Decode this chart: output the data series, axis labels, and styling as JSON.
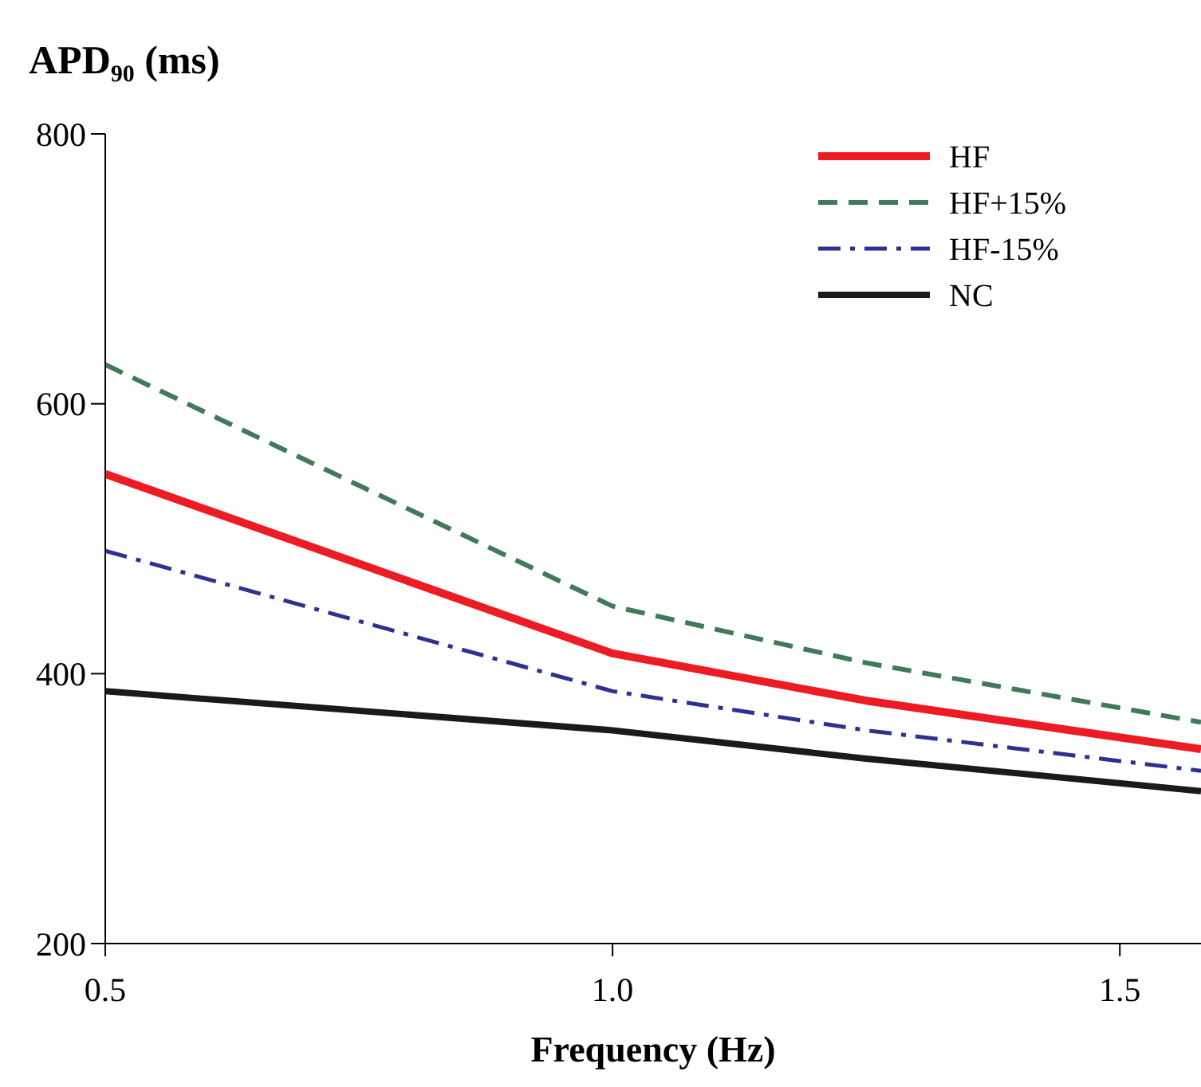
{
  "chart_data": {
    "type": "line",
    "ylabel": "APD₉₀ (ms)",
    "xlabel": "Frequency (Hz)",
    "x": [
      0.5,
      1.0,
      1.25,
      1.58
    ],
    "xlim": [
      0.5,
      1.58
    ],
    "xticks": [
      {
        "value": 0.5,
        "label": "0.5"
      },
      {
        "value": 1.0,
        "label": "1.0"
      },
      {
        "value": 1.5,
        "label": "1.5"
      }
    ],
    "ylim": [
      200,
      800
    ],
    "yticks": [
      200,
      400,
      600,
      800
    ],
    "grid": false,
    "legend": "top right",
    "series": [
      {
        "name": "HF",
        "color": "#ed1c24",
        "values": [
          548,
          415,
          380,
          344
        ],
        "line_style": "solid"
      },
      {
        "name": "HF+15%",
        "color": "#3f7a5a",
        "values": [
          629,
          450,
          408,
          364
        ],
        "line_style": "dashed"
      },
      {
        "name": "HF-15%",
        "color": "#2e3192",
        "values": [
          491,
          387,
          358,
          328
        ],
        "line_style": "dashdot"
      },
      {
        "name": "NC",
        "color": "#1a1a1a",
        "values": [
          387,
          358,
          337,
          313
        ],
        "line_style": "solid"
      }
    ]
  }
}
